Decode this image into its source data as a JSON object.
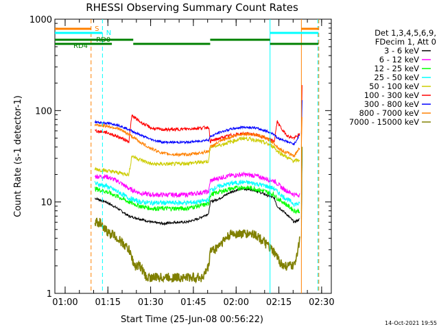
{
  "chart_data": {
    "type": "line",
    "title": "RHESSI Observing Summary Count Rates",
    "xlabel": "Start Time (25-Jun-08 00:56:22)",
    "ylabel": "Count Rate (s-1 detector-1)",
    "y_scale": "log",
    "xlim_minutes_after_start": [
      0,
      97
    ],
    "ylim": [
      1,
      1000
    ],
    "x_ticks": [
      {
        "label": "01:00",
        "minutes": 3.6
      },
      {
        "label": "01:15",
        "minutes": 18.6
      },
      {
        "label": "01:30",
        "minutes": 33.6
      },
      {
        "label": "01:45",
        "minutes": 48.6
      },
      {
        "label": "02:00",
        "minutes": 63.6
      },
      {
        "label": "02:15",
        "minutes": 78.6
      },
      {
        "label": "02:30",
        "minutes": 93.6
      }
    ],
    "y_ticks": [
      {
        "label": "1",
        "value": 1
      },
      {
        "label": "10",
        "value": 10
      },
      {
        "label": "100",
        "value": 100
      },
      {
        "label": "1000",
        "value": 1000
      }
    ],
    "legend_header": [
      "Det 1,3,4,5,6,9,",
      "FDecim 1, Att 0"
    ],
    "legend_position": "right",
    "series": [
      {
        "name": "3 - 6 keV",
        "color": "#000000",
        "x": [
          14,
          18,
          22,
          26,
          30,
          34,
          38,
          42,
          46,
          50,
          54,
          54.5,
          58,
          62,
          66,
          70,
          74,
          77,
          78,
          80,
          82,
          84,
          86
        ],
        "y": [
          11,
          10,
          8.5,
          7,
          6.5,
          6,
          5.8,
          6,
          6,
          6.5,
          7.5,
          10,
          11,
          13,
          14,
          13.5,
          12,
          11,
          9,
          8,
          7,
          6,
          6.5
        ]
      },
      {
        "name": "6 - 12 keV",
        "color": "#ff00ff",
        "x": [
          14,
          18,
          22,
          26,
          30,
          34,
          38,
          42,
          46,
          50,
          54,
          54.5,
          58,
          62,
          66,
          70,
          74,
          77,
          78,
          80,
          82,
          84,
          86
        ],
        "y": [
          19,
          19,
          17,
          14,
          12.5,
          12,
          12,
          12,
          12,
          12.5,
          13,
          17,
          18.5,
          19.5,
          20,
          19.5,
          18,
          17,
          16,
          14,
          13,
          12,
          12
        ]
      },
      {
        "name": "12 - 25 keV",
        "color": "#00ff00",
        "x": [
          14,
          18,
          22,
          26,
          30,
          34,
          38,
          42,
          46,
          50,
          54,
          54.5,
          58,
          62,
          66,
          70,
          74,
          77,
          78,
          80,
          82,
          84,
          86
        ],
        "y": [
          14,
          13,
          11.5,
          10,
          9,
          8.5,
          8.5,
          8.5,
          8.5,
          9,
          9.5,
          12,
          13,
          14,
          14.5,
          14,
          13,
          12,
          11,
          10,
          9,
          8,
          8
        ]
      },
      {
        "name": "25 - 50 keV",
        "color": "#00ffff",
        "x": [
          14,
          18,
          22,
          26,
          30,
          34,
          38,
          42,
          46,
          50,
          54,
          54.5,
          58,
          62,
          66,
          70,
          74,
          77,
          78,
          80,
          82,
          84,
          86
        ],
        "y": [
          16,
          15,
          13,
          11,
          10,
          9.8,
          9.8,
          9.8,
          9.8,
          10,
          10.5,
          13.5,
          15,
          16,
          16.5,
          16,
          15,
          14,
          13,
          11.5,
          10.5,
          9.5,
          9.5
        ]
      },
      {
        "name": "50 - 100 keV",
        "color": "#cccc00",
        "x": [
          14,
          18,
          22,
          26,
          27,
          30,
          34,
          38,
          42,
          46,
          50,
          54,
          54.5,
          58,
          62,
          66,
          70,
          74,
          77,
          78,
          80,
          82,
          84,
          86
        ],
        "y": [
          23,
          22,
          21,
          20,
          32,
          29,
          26,
          26,
          26,
          26.5,
          27,
          28,
          40,
          42,
          46,
          50,
          48,
          44,
          40,
          36,
          33,
          30,
          28,
          29
        ]
      },
      {
        "name": "100 - 300 keV",
        "color": "#ff0000",
        "x": [
          14,
          18,
          22,
          26,
          27,
          30,
          34,
          38,
          42,
          46,
          50,
          54,
          54.5,
          58,
          62,
          66,
          70,
          74,
          77,
          78,
          80,
          82,
          84,
          86
        ],
        "y": [
          60,
          58,
          52,
          46,
          88,
          75,
          64,
          62,
          62,
          63,
          64,
          66,
          46,
          50,
          54,
          56,
          55,
          50,
          46,
          76,
          60,
          52,
          50,
          55
        ]
      },
      {
        "name": "300 - 800 keV",
        "color": "#0000ff",
        "x": [
          14,
          18,
          22,
          26,
          30,
          34,
          38,
          42,
          46,
          50,
          54,
          54.5,
          58,
          62,
          66,
          70,
          74,
          77,
          78,
          80,
          82,
          84,
          86
        ],
        "y": [
          75,
          73,
          70,
          62,
          54,
          48,
          45,
          45,
          45,
          46,
          48,
          52,
          58,
          63,
          66,
          65,
          60,
          55,
          50,
          48,
          45,
          43,
          55
        ]
      },
      {
        "name": "800 - 7000 keV",
        "color": "#ff8000",
        "x": [
          14,
          18,
          22,
          26,
          30,
          34,
          38,
          42,
          46,
          50,
          54,
          54.5,
          58,
          62,
          66,
          70,
          74,
          77,
          78,
          80,
          82,
          84,
          86
        ],
        "y": [
          70,
          68,
          64,
          55,
          45,
          38,
          34,
          33,
          33,
          34,
          36,
          40,
          46,
          52,
          56,
          55,
          50,
          44,
          40,
          36,
          34,
          32,
          40
        ]
      },
      {
        "name": "7000 - 15000 keV",
        "color": "#808000",
        "x": [
          14,
          16,
          17,
          18,
          19,
          20,
          22,
          24,
          26,
          28,
          30,
          32,
          34,
          36,
          38,
          40,
          42,
          44,
          46,
          48,
          50,
          52,
          54,
          54.5,
          56,
          58,
          60,
          62,
          64,
          66,
          68,
          70,
          72,
          74,
          76,
          78,
          80,
          82,
          84,
          86
        ],
        "y": [
          6,
          6,
          5,
          5,
          4.5,
          4.5,
          4,
          3.5,
          3,
          2,
          2,
          1.5,
          1.5,
          1.5,
          1.5,
          1.5,
          1.5,
          1.5,
          1.5,
          1.5,
          1.5,
          1.5,
          2,
          3,
          3,
          3.5,
          4,
          4.5,
          4.5,
          4.5,
          4.5,
          4.5,
          4,
          3.5,
          3,
          2.5,
          2,
          2,
          2,
          4
        ]
      }
    ],
    "state_bars": [
      {
        "label": "S",
        "color": "#ff8000"
      },
      {
        "label": "N",
        "color": "#00ffff"
      },
      {
        "label": "RD0",
        "color": "#008000"
      },
      {
        "label": "RD4",
        "color": "#008000"
      }
    ],
    "timestamp": "14-Oct-2021 19:55"
  }
}
